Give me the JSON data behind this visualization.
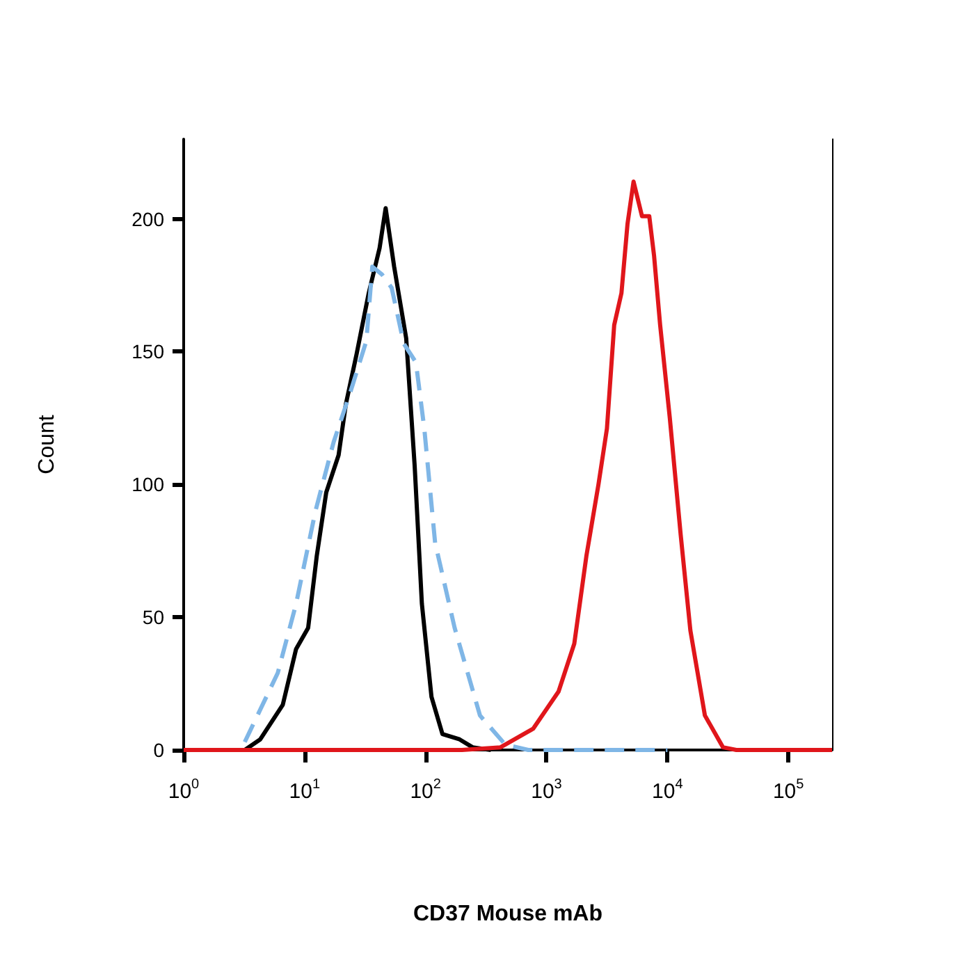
{
  "chart_data": {
    "type": "line",
    "xlabel": "CD37 Mouse mAb",
    "ylabel": "Count",
    "log": "x",
    "xlim": [
      1,
      230000
    ],
    "ylim": [
      0,
      230
    ],
    "xticks": [
      {
        "value": 1,
        "label": "10$^{0}$"
      },
      {
        "value": 10,
        "label": "10$^{1}$"
      },
      {
        "value": 100,
        "label": "10$^{2}$"
      },
      {
        "value": 1000,
        "label": "10$^{3}$"
      },
      {
        "value": 10000,
        "label": "10$^{4}$"
      },
      {
        "value": 100000,
        "label": "10$^{5}$"
      }
    ],
    "yticks": [
      0,
      50,
      100,
      150,
      200
    ],
    "grid": false,
    "marker": "none",
    "series": [
      {
        "color": "#000000",
        "line_style": "solid",
        "x": [
          3.2,
          4.3,
          6.6,
          8.5,
          10.7,
          12.6,
          15.1,
          19.1,
          21.9,
          26.9,
          33.9,
          41.7,
          46.8,
          55,
          69.2,
          81.3,
          93.3,
          112,
          138,
          191,
          245,
          347
        ],
        "values": [
          0,
          4,
          17,
          38,
          46,
          73,
          97,
          111,
          130,
          149,
          172,
          189,
          204,
          182,
          155,
          107,
          55,
          20,
          6,
          4,
          1,
          0
        ]
      },
      {
        "color": "#7fb6e6",
        "line_style": "dashed",
        "x": [
          3.2,
          6.0,
          8.5,
          12.3,
          17.4,
          24,
          32.4,
          36.3,
          43.7,
          52.5,
          66.1,
          83.2,
          97.7,
          120,
          174,
          282,
          457,
          708,
          10000
        ],
        "values": [
          3,
          29,
          55,
          90,
          116,
          135,
          154,
          182,
          179,
          174,
          153,
          146,
          121,
          78,
          46,
          13,
          2,
          0,
          0
        ]
      },
      {
        "color": "#e0161b",
        "line_style": "solid",
        "x": [
          1,
          200,
          417,
          776,
          1259,
          1698,
          2138,
          2692,
          3162,
          3631,
          4169,
          4677,
          5248,
          6166,
          7079,
          7762,
          8710,
          10470,
          12880,
          15490,
          20420,
          28840,
          37150,
          230000
        ],
        "values": [
          0,
          0,
          1,
          8,
          22,
          40,
          73,
          100,
          121,
          160,
          172,
          198,
          214,
          201,
          201,
          186,
          160,
          125,
          81,
          45,
          13,
          1,
          0,
          0
        ]
      }
    ]
  }
}
